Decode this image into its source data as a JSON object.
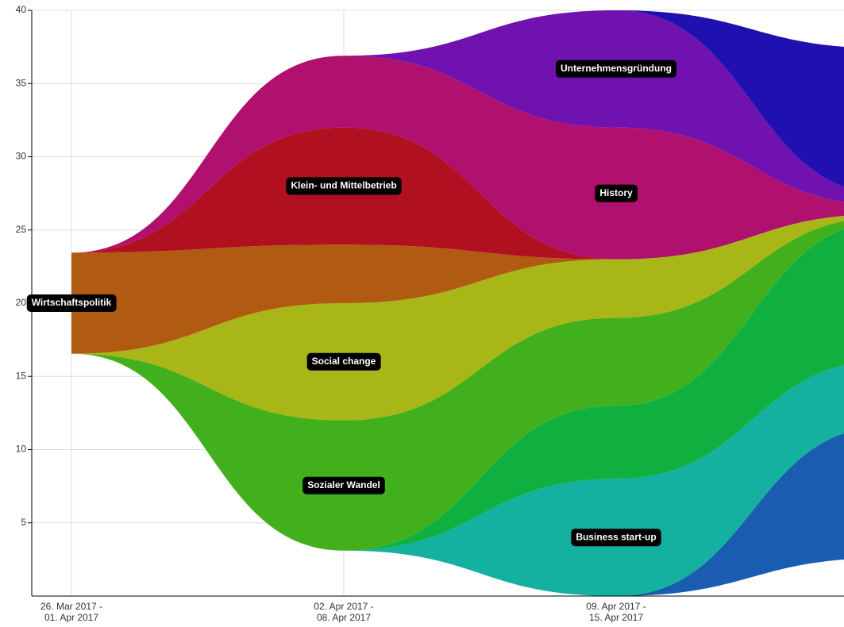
{
  "chart_data": {
    "type": "streamgraph",
    "categories": [
      "26. Mar 2017 -\n01. Apr 2017",
      "02. Apr 2017 -\n08. Apr 2017",
      "09. Apr 2017 -\n15. Apr 2017",
      null
    ],
    "ylim": [
      0,
      40
    ],
    "yticks": [
      5,
      10,
      15,
      20,
      25,
      30,
      35,
      40
    ],
    "grid": true,
    "series": [
      {
        "color": "#1a5cb0",
        "values": [
          0,
          0,
          0,
          9
        ]
      },
      {
        "name": "Business start-up",
        "color": "#14b0a0",
        "values": [
          0,
          0,
          8,
          4.5
        ]
      },
      {
        "color": "#10b040",
        "values": [
          0,
          0,
          5,
          9.5
        ]
      },
      {
        "name": "Sozialer Wandel",
        "color": "#42b01c",
        "values": [
          0,
          8.9,
          6,
          0.3
        ]
      },
      {
        "name": "Social change",
        "color": "#a8b618",
        "values": [
          0,
          8,
          4,
          0.2
        ]
      },
      {
        "name": "Wirtschaftspolitik",
        "color": "#b05a12",
        "values": [
          6.9,
          4,
          0,
          0
        ]
      },
      {
        "name": "Klein- und Mittelbetrieb",
        "color": "#b01020",
        "values": [
          0,
          8,
          0,
          0
        ]
      },
      {
        "name": "History",
        "color": "#b0106e",
        "values": [
          0,
          4.9,
          9,
          0.6
        ]
      },
      {
        "name": "Unternehmensgründung",
        "color": "#7012b0",
        "values": [
          0,
          0,
          8,
          0.7
        ]
      },
      {
        "color": "#2010b0",
        "values": [
          0,
          0,
          0,
          10
        ]
      }
    ]
  }
}
